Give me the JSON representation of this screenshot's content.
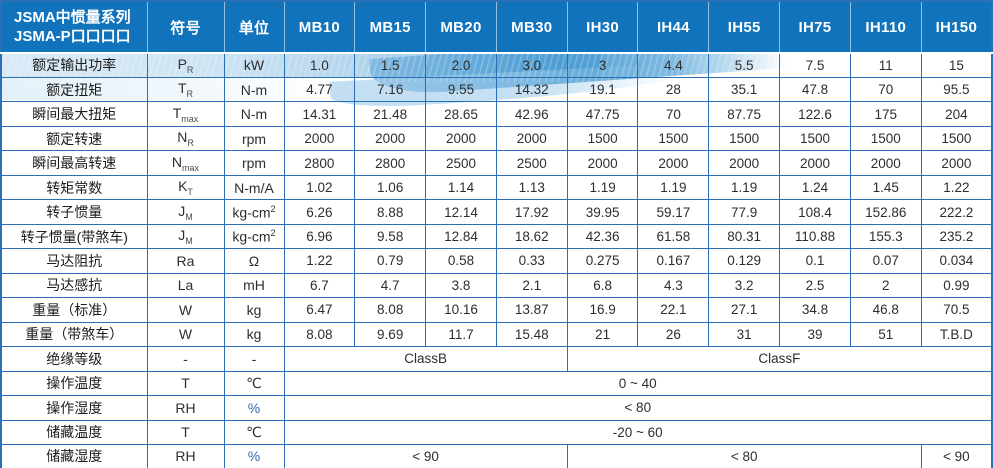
{
  "table": {
    "title_line1": "JSMA中惯量系列",
    "title_line2": "JSMA-P口口口口",
    "col_symbol": "符号",
    "col_unit": "单位",
    "models": [
      "MB10",
      "MB15",
      "MB20",
      "MB30",
      "IH30",
      "IH44",
      "IH55",
      "IH75",
      "IH110",
      "IH150"
    ],
    "spec_rows": [
      {
        "label": "额定输出功率",
        "sym": "P",
        "sub": "R",
        "unit": "kW",
        "unit_sup": "",
        "values": [
          "1.0",
          "1.5",
          "2.0",
          "3.0",
          "3",
          "4.4",
          "5.5",
          "7.5",
          "11",
          "15"
        ]
      },
      {
        "label": "额定扭矩",
        "sym": "T",
        "sub": "R",
        "unit": "N-m",
        "unit_sup": "",
        "values": [
          "4.77",
          "7.16",
          "9.55",
          "14.32",
          "19.1",
          "28",
          "35.1",
          "47.8",
          "70",
          "95.5"
        ]
      },
      {
        "label": "瞬间最大扭矩",
        "sym": "T",
        "sub": "max",
        "unit": "N-m",
        "unit_sup": "",
        "values": [
          "14.31",
          "21.48",
          "28.65",
          "42.96",
          "47.75",
          "70",
          "87.75",
          "122.6",
          "175",
          "204"
        ]
      },
      {
        "label": "额定转速",
        "sym": "N",
        "sub": "R",
        "unit": "rpm",
        "unit_sup": "",
        "values": [
          "2000",
          "2000",
          "2000",
          "2000",
          "1500",
          "1500",
          "1500",
          "1500",
          "1500",
          "1500"
        ]
      },
      {
        "label": "瞬间最高转速",
        "sym": "N",
        "sub": "max",
        "unit": "rpm",
        "unit_sup": "",
        "values": [
          "2800",
          "2800",
          "2500",
          "2500",
          "2000",
          "2000",
          "2000",
          "2000",
          "2000",
          "2000"
        ]
      },
      {
        "label": "转矩常数",
        "sym": "K",
        "sub": "T",
        "unit": "N-m/A",
        "unit_sup": "",
        "values": [
          "1.02",
          "1.06",
          "1.14",
          "1.13",
          "1.19",
          "1.19",
          "1.19",
          "1.24",
          "1.45",
          "1.22"
        ]
      },
      {
        "label": "转子惯量",
        "sym": "J",
        "sub": "M",
        "unit": "kg-cm",
        "unit_sup": "2",
        "values": [
          "6.26",
          "8.88",
          "12.14",
          "17.92",
          "39.95",
          "59.17",
          "77.9",
          "108.4",
          "152.86",
          "222.2"
        ]
      },
      {
        "label": "转子惯量(带煞车)",
        "sym": "J",
        "sub": "M",
        "unit": "kg-cm",
        "unit_sup": "2",
        "values": [
          "6.96",
          "9.58",
          "12.84",
          "18.62",
          "42.36",
          "61.58",
          "80.31",
          "110.88",
          "155.3",
          "235.2"
        ]
      },
      {
        "label": "马达阻抗",
        "sym": "Ra",
        "sub": "",
        "unit": "Ω",
        "unit_sup": "",
        "values": [
          "1.22",
          "0.79",
          "0.58",
          "0.33",
          "0.275",
          "0.167",
          "0.129",
          "0.1",
          "0.07",
          "0.034"
        ]
      },
      {
        "label": "马达感抗",
        "sym": "La",
        "sub": "",
        "unit": "mH",
        "unit_sup": "",
        "values": [
          "6.7",
          "4.7",
          "3.8",
          "2.1",
          "6.8",
          "4.3",
          "3.2",
          "2.5",
          "2",
          "0.99"
        ]
      },
      {
        "label": "重量（标准）",
        "sym": "W",
        "sub": "",
        "unit": "kg",
        "unit_sup": "",
        "values": [
          "6.47",
          "8.08",
          "10.16",
          "13.87",
          "16.9",
          "22.1",
          "27.1",
          "34.8",
          "46.8",
          "70.5"
        ]
      },
      {
        "label": "重量（带煞车）",
        "sym": "W",
        "sub": "",
        "unit": "kg",
        "unit_sup": "",
        "values": [
          "8.08",
          "9.69",
          "11.7",
          "15.48",
          "21",
          "26",
          "31",
          "39",
          "51",
          "T.B.D"
        ]
      }
    ],
    "env_rows": [
      {
        "label": "绝缘等级",
        "sym": "-",
        "sub": "",
        "unit": "-",
        "unit_sup": "",
        "cells": [
          {
            "text": "ClassB",
            "span": 4
          },
          {
            "text": "ClassF",
            "span": 6
          }
        ]
      },
      {
        "label": "操作温度",
        "sym": "T",
        "sub": "",
        "unit": "℃",
        "unit_sup": "",
        "cells": [
          {
            "text": "0 ~ 40",
            "span": 10
          }
        ]
      },
      {
        "label": "操作湿度",
        "sym": "RH",
        "sub": "",
        "unit": "%",
        "unit_sup": "",
        "cells": [
          {
            "text": "< 80",
            "span": 10
          }
        ]
      },
      {
        "label": "储藏温度",
        "sym": "T",
        "sub": "",
        "unit": "℃",
        "unit_sup": "",
        "cells": [
          {
            "text": "-20 ~ 60",
            "span": 10
          }
        ]
      },
      {
        "label": "储藏湿度",
        "sym": "RH",
        "sub": "",
        "unit": "%",
        "unit_sup": "",
        "cells": [
          {
            "text": "< 90",
            "span": 4
          },
          {
            "text": "< 80",
            "span": 5
          },
          {
            "text": "< 90",
            "span": 1
          }
        ]
      }
    ]
  },
  "colors": {
    "header_blue": "#1173bb",
    "border_blue": "#2b70b4",
    "wave_deep_blue": "#4a9cd3",
    "wave_light_blue": "#cde4f3",
    "value_text": "#2e2e2e",
    "percent_blue": "#3566a8"
  }
}
